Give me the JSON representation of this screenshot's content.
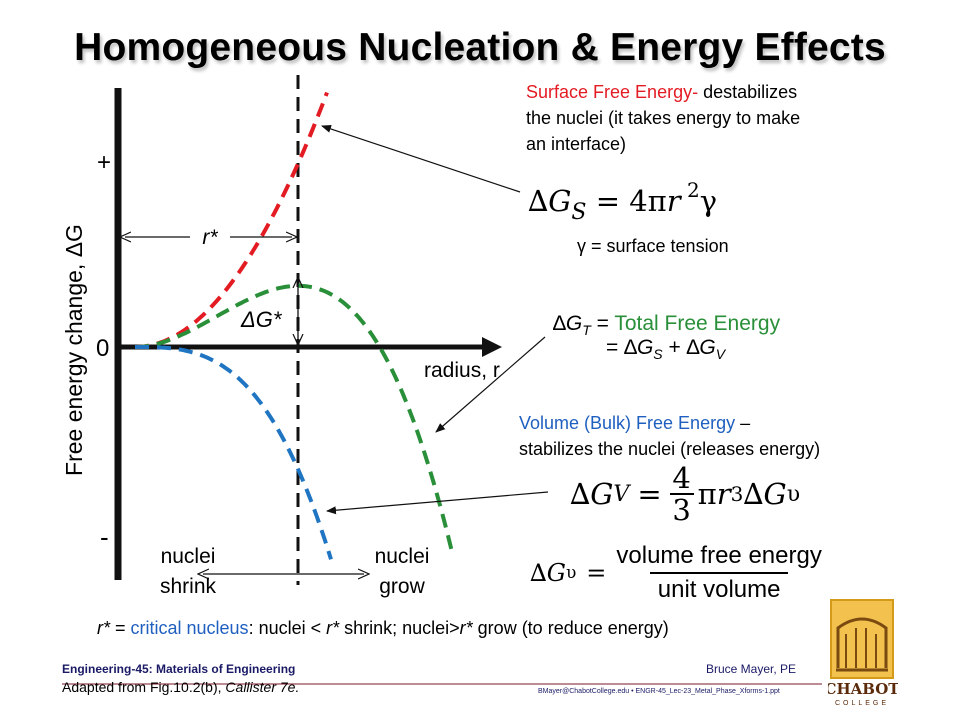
{
  "title": "Homogeneous Nucleation & Energy Effects",
  "graph": {
    "y_axis_label": "Free energy change, ΔG",
    "plus": "+",
    "zero": "0",
    "minus": "-",
    "x_axis_label": "radius, r",
    "r_star": "r*",
    "delta_g_star": "ΔG*",
    "nuclei_shrink": [
      "nuclei",
      "shrink"
    ],
    "nuclei_grow": [
      "nuclei",
      "grow"
    ],
    "colors": {
      "surface": "#e31b23",
      "total": "#2a8f39",
      "volume": "#1f75c2",
      "axis": "#111111"
    }
  },
  "annotations": {
    "surface_title": "Surface Free Energy-",
    "surface_desc_1": " destabilizes",
    "surface_desc_2": "the nuclei (it takes energy to make",
    "surface_desc_3": "an interface)",
    "gamma_note": "γ = surface tension",
    "total_title": "Total Free Energy",
    "volume_title": "Volume (Bulk) Free Energy",
    "volume_dash": " –",
    "volume_desc": "stabilizes the nuclei (releases energy)",
    "volume_fraction_num": "volume free energy",
    "volume_fraction_den": "unit volume"
  },
  "critical_line": {
    "r1": "r*",
    "eq": " = ",
    "term": "critical nucleus",
    "rest1": ": nuclei < ",
    "r2": "r*",
    "rest2": " shrink; nuclei>",
    "r3": "r*",
    "rest3": " grow (to reduce energy)"
  },
  "footer": {
    "course": "Engineering-45: Materials of Engineering",
    "author": "Bruce Mayer, PE",
    "adapted": "Adapted from Fig.10.2(b), Callister 7e.",
    "email": "BMayer@ChabotCollege.edu",
    "file": " • ENGR-45_Lec-23_Metal_Phase_Xforms-1.ppt",
    "logo_text": "CHABOT",
    "logo_sub": "COLLEGE"
  }
}
